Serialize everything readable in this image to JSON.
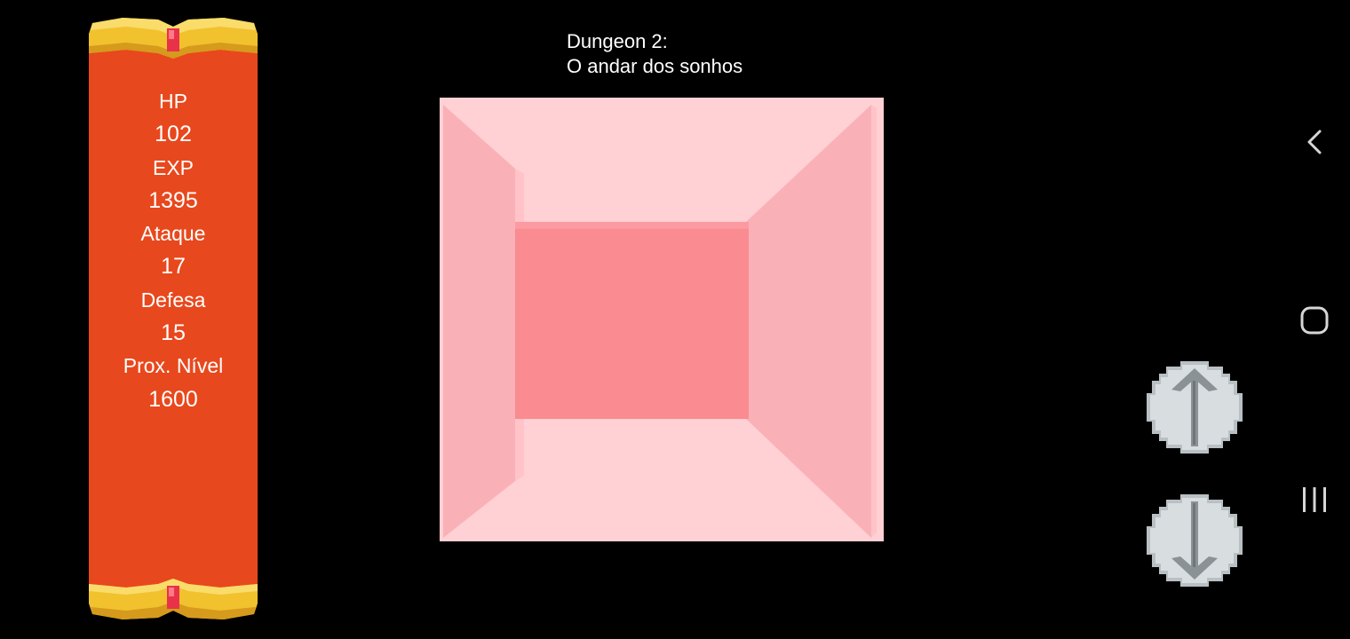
{
  "title": {
    "line1": "Dungeon 2:",
    "line2": "O andar dos sonhos"
  },
  "stats": {
    "hp_label": "HP",
    "hp_value": "102",
    "exp_label": "EXP",
    "exp_value": "1395",
    "attack_label": "Ataque",
    "attack_value": "17",
    "defense_label": "Defesa",
    "defense_value": "15",
    "next_level_label": "Prox. Nível",
    "next_level_value": "1600"
  },
  "controls": {
    "forward_icon": "arrow-up-icon",
    "back_icon": "arrow-down-icon"
  },
  "system_nav": {
    "back_icon": "chevron-left-icon",
    "home_icon": "rounded-square-icon",
    "recents_icon": "three-bars-icon"
  },
  "colors": {
    "scroll_body": "#e8481d",
    "scroll_gold": "#f2c12e",
    "scroll_gem": "#e8324a",
    "dungeon_ceiling": "#ffd0d4",
    "dungeon_walls": "#f9b1b7",
    "dungeon_end_wall": "#f98b91",
    "button_face": "#d8dde0"
  }
}
